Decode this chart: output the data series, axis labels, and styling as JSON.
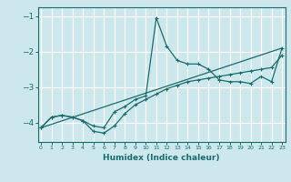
{
  "xlabel": "Humidex (Indice chaleur)",
  "bg_color": "#cde8ed",
  "grid_color": "#ffffff",
  "line_color": "#1a6b6b",
  "yticks": [
    -4,
    -3,
    -2,
    -1
  ],
  "xticks": [
    0,
    1,
    2,
    3,
    4,
    5,
    6,
    7,
    8,
    9,
    10,
    11,
    12,
    13,
    14,
    15,
    16,
    17,
    18,
    19,
    20,
    21,
    22,
    23
  ],
  "xlim": [
    -0.3,
    23.3
  ],
  "ylim": [
    -4.55,
    -0.75
  ],
  "line1_x": [
    0,
    1,
    2,
    3,
    4,
    5,
    6,
    7,
    8,
    9,
    10,
    11,
    12,
    13,
    14,
    15,
    16,
    17,
    18,
    19,
    20,
    21,
    22,
    23
  ],
  "line1_y": [
    -4.15,
    -3.85,
    -3.8,
    -3.85,
    -3.95,
    -4.1,
    -4.15,
    -3.7,
    -3.55,
    -3.35,
    -3.25,
    -1.05,
    -1.85,
    -2.25,
    -2.35,
    -2.35,
    -2.5,
    -2.8,
    -2.85,
    -2.85,
    -2.9,
    -2.7,
    -2.85,
    -1.9
  ],
  "line2_x": [
    0,
    1,
    2,
    3,
    4,
    5,
    6,
    7,
    8,
    9,
    10,
    11,
    12,
    13,
    14,
    15,
    16,
    17,
    18,
    19,
    20,
    21,
    22,
    23
  ],
  "line2_y": [
    -4.15,
    -3.85,
    -3.8,
    -3.85,
    -3.95,
    -4.25,
    -4.3,
    -4.1,
    -3.75,
    -3.5,
    -3.35,
    -3.2,
    -3.05,
    -2.95,
    -2.85,
    -2.8,
    -2.75,
    -2.7,
    -2.65,
    -2.6,
    -2.55,
    -2.5,
    -2.45,
    -2.1
  ],
  "line3_x": [
    0,
    23
  ],
  "line3_y": [
    -4.15,
    -1.9
  ],
  "lw": 0.9,
  "ms": 3.5
}
